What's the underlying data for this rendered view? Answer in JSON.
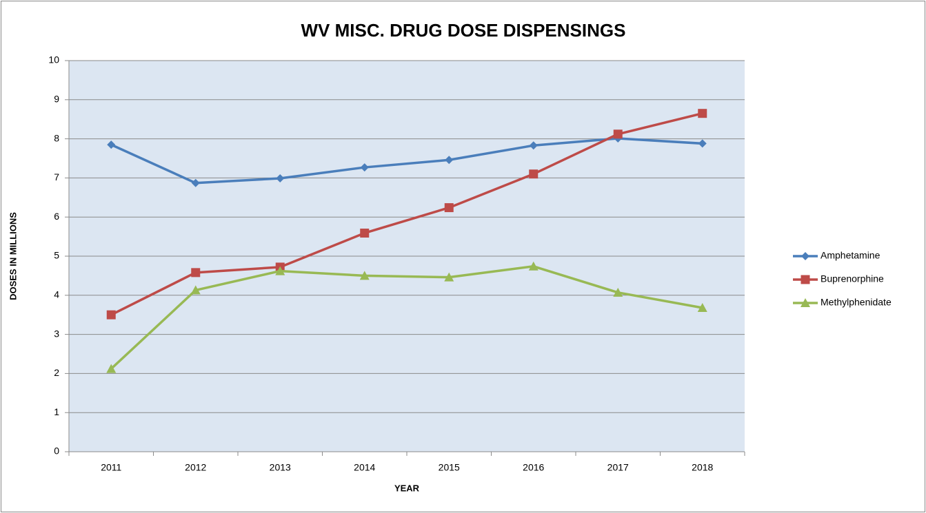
{
  "chart_data": {
    "type": "line",
    "title": "WV MISC. DRUG DOSE DISPENSINGS",
    "x_label": "YEAR",
    "y_label": "DOSES IN MILLIONS",
    "categories": [
      "2011",
      "2012",
      "2013",
      "2014",
      "2015",
      "2016",
      "2017",
      "2018"
    ],
    "series": [
      {
        "name": "Amphetamine",
        "color": "#4a7ebb",
        "marker": "diamond",
        "values": [
          7.85,
          6.87,
          6.99,
          7.27,
          7.46,
          7.83,
          8.01,
          7.88
        ]
      },
      {
        "name": "Buprenorphine",
        "color": "#be4b48",
        "marker": "square",
        "values": [
          3.5,
          4.58,
          4.72,
          5.59,
          6.24,
          7.1,
          8.12,
          8.65
        ]
      },
      {
        "name": "Methylphenidate",
        "color": "#98b954",
        "marker": "triangle",
        "values": [
          2.12,
          4.13,
          4.62,
          4.5,
          4.46,
          4.74,
          4.07,
          3.68
        ]
      }
    ],
    "ylim": [
      0,
      10
    ],
    "yticks": [
      0,
      1,
      2,
      3,
      4,
      5,
      6,
      7,
      8,
      9,
      10
    ],
    "grid": true,
    "legend_position": "right",
    "plot_background": "#dce6f2"
  }
}
